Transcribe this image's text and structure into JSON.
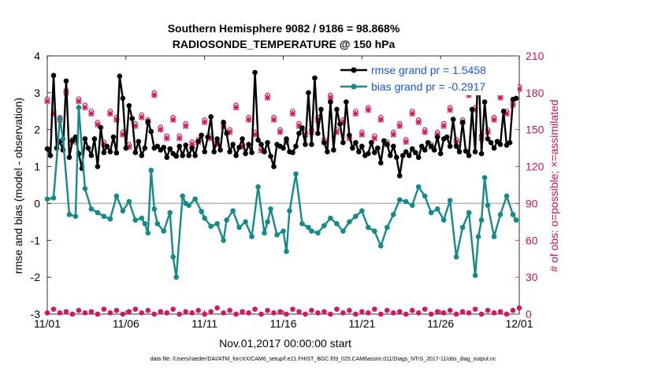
{
  "chart_data": {
    "type": "line",
    "title_line1": "Southern Hemisphere 9082 / 9186 = 98.868%",
    "title_line2": "RADIOSONDE_TEMPERATURE @ 150 hPa",
    "xlabel": "Nov.01,2017 00:00:00 start",
    "ylabel_left": "rmse and bias (model - observation)",
    "ylabel_right": "# of obs: o=possible; ×=assimilated",
    "footnote": "data file: /Users/raeder/DAI/ATM_forcXX/CAM6_setup/f.e21.FHIST_BGC.f09_025.CAM6assim.011/Diags_NTrS_2017-11/obs_diag_output.nc",
    "xlim": [
      0,
      30
    ],
    "ylim_left": [
      -3,
      4
    ],
    "ylim_right": [
      0,
      210
    ],
    "x_ticks": [
      0,
      5,
      10,
      15,
      20,
      25,
      30
    ],
    "x_tick_labels": [
      "11/01",
      "11/06",
      "11/11",
      "11/16",
      "11/21",
      "11/26",
      "12/01"
    ],
    "y_ticks_left": [
      -3,
      -2,
      -1,
      0,
      1,
      2,
      3,
      4
    ],
    "y_tick_labels_left": [
      "-3",
      "-2",
      "-1",
      "0",
      "1",
      "2",
      "3",
      "4"
    ],
    "y_ticks_right": [
      0,
      30,
      60,
      90,
      120,
      150,
      180,
      210
    ],
    "y_tick_labels_right": [
      "0",
      "30",
      "60",
      "90",
      "120",
      "150",
      "180",
      "210"
    ],
    "colors": {
      "rmse": "#000000",
      "bias": "#148a8a",
      "obs": "#d6175e",
      "legend_text": "#1a55e6",
      "zero_line": "#b5b5b5"
    },
    "series": [
      {
        "name": "rmse grand pr = 1.5458",
        "values": [
          1.48,
          1.3,
          3.47,
          1.5,
          1.68,
          1.45,
          3.32,
          1.25,
          1.7,
          1.8,
          1.35,
          0.95,
          1.75,
          1.5,
          1.3,
          1.75,
          1.0,
          2.06,
          1.38,
          1.55,
          1.4,
          1.8,
          1.37,
          3.45,
          2.85,
          1.5,
          2.65,
          2.3,
          1.38,
          1.68,
          1.3,
          1.5,
          2.22,
          1.95,
          1.5,
          1.55,
          1.45,
          1.52,
          1.25,
          1.48,
          1.35,
          1.28,
          1.55,
          1.3,
          1.58,
          1.3,
          1.5,
          1.3,
          1.68,
          1.85,
          1.4,
          1.8,
          2.35,
          1.4,
          1.75,
          1.45,
          2.2,
          1.9,
          1.4,
          1.6,
          1.3,
          1.52,
          1.75,
          1.35,
          1.6,
          1.38,
          3.55,
          1.72,
          1.6,
          1.4,
          1.65,
          1.28,
          1.0,
          1.6,
          1.55,
          1.5,
          1.75,
          1.4,
          1.38,
          1.55,
          1.9,
          2.05,
          1.6,
          3.0,
          1.6,
          3.4,
          1.9,
          2.55,
          1.65,
          1.4,
          2.75,
          1.45,
          2.55,
          2.15,
          1.65,
          2.75,
          1.85,
          1.5,
          1.65,
          1.4,
          1.55,
          1.3,
          1.35,
          1.65,
          1.38,
          1.5,
          1.1,
          1.7,
          1.6,
          1.3,
          1.55,
          1.25,
          0.75,
          1.3,
          1.4,
          1.3,
          1.48,
          1.38,
          1.25,
          1.55,
          1.45,
          1.65,
          1.55,
          1.45,
          1.8,
          1.35,
          1.75,
          1.8,
          1.55,
          2.28,
          1.55,
          1.4,
          2.2,
          1.42,
          1.3,
          2.55,
          1.4,
          3.85,
          1.35,
          2.75,
          1.75,
          1.65,
          1.5,
          1.68,
          1.6,
          2.5,
          1.58,
          1.65,
          2.82,
          2.85
        ],
        "x": [
          0.0,
          0.2,
          0.4,
          0.6,
          0.8,
          1.0,
          1.2,
          1.4,
          1.6,
          1.8,
          2.0,
          2.2,
          2.4,
          2.6,
          2.8,
          3.0,
          3.2,
          3.4,
          3.6,
          3.8,
          4.0,
          4.2,
          4.4,
          4.6,
          4.8,
          5.0,
          5.2,
          5.4,
          5.6,
          5.8,
          6.0,
          6.2,
          6.4,
          6.6,
          6.8,
          7.0,
          7.2,
          7.4,
          7.6,
          7.8,
          8.0,
          8.2,
          8.4,
          8.6,
          8.8,
          9.0,
          9.2,
          9.4,
          9.6,
          9.8,
          10.0,
          10.2,
          10.4,
          10.6,
          10.8,
          11.0,
          11.2,
          11.4,
          11.6,
          11.8,
          12.0,
          12.2,
          12.4,
          12.6,
          12.8,
          13.0,
          13.2,
          13.4,
          13.6,
          13.8,
          14.0,
          14.2,
          14.4,
          14.6,
          14.8,
          15.0,
          15.2,
          15.4,
          15.6,
          15.8,
          16.0,
          16.2,
          16.4,
          16.6,
          16.8,
          17.0,
          17.2,
          17.4,
          17.6,
          17.8,
          18.0,
          18.2,
          18.4,
          18.6,
          18.8,
          19.0,
          19.2,
          19.4,
          19.6,
          19.8,
          20.0,
          20.2,
          20.4,
          20.6,
          20.8,
          21.0,
          21.2,
          21.4,
          21.6,
          21.8,
          22.0,
          22.2,
          22.4,
          22.6,
          22.8,
          23.0,
          23.2,
          23.4,
          23.6,
          23.8,
          24.0,
          24.2,
          24.4,
          24.6,
          24.8,
          25.0,
          25.2,
          25.4,
          25.6,
          25.8,
          26.0,
          26.2,
          26.4,
          26.6,
          26.8,
          27.0,
          27.2,
          27.4,
          27.6,
          27.8,
          28.0,
          28.2,
          28.4,
          28.6,
          28.8,
          29.0,
          29.2,
          29.4,
          29.6,
          29.8
        ]
      },
      {
        "name": "bias grand pr = -0.2917",
        "x": [
          0.0,
          0.4,
          0.8,
          1.0,
          1.4,
          1.8,
          2.0,
          2.4,
          2.8,
          3.2,
          3.6,
          4.0,
          4.4,
          4.8,
          5.2,
          5.6,
          6.0,
          6.2,
          6.4,
          6.6,
          6.8,
          7.0,
          7.4,
          7.8,
          8.0,
          8.2,
          8.6,
          8.8,
          9.0,
          9.4,
          9.8,
          10.0,
          10.4,
          10.8,
          11.2,
          11.4,
          11.8,
          12.2,
          12.6,
          13.0,
          13.4,
          13.8,
          14.0,
          14.2,
          14.6,
          15.0,
          15.2,
          15.4,
          15.8,
          16.2,
          16.6,
          16.8,
          17.2,
          17.6,
          18.0,
          18.4,
          18.8,
          19.2,
          19.6,
          20.0,
          20.4,
          20.8,
          21.2,
          21.6,
          22.0,
          22.4,
          22.8,
          23.2,
          23.6,
          24.0,
          24.4,
          24.8,
          25.2,
          25.6,
          26.0,
          26.4,
          26.8,
          27.2,
          27.4,
          27.6,
          27.8,
          28.0,
          28.4,
          28.8,
          29.2,
          29.6,
          29.8
        ],
        "values": [
          0.12,
          0.15,
          2.3,
          1.75,
          -0.3,
          -0.35,
          2.6,
          0.4,
          -0.15,
          -0.25,
          -0.35,
          -0.42,
          0.2,
          -0.2,
          0.05,
          -0.45,
          -0.4,
          -0.55,
          -0.8,
          0.9,
          -0.15,
          -0.55,
          -0.75,
          -0.25,
          -1.45,
          -2.0,
          0.2,
          0.0,
          -0.05,
          0.12,
          -0.22,
          -0.4,
          -0.62,
          -0.55,
          -1.0,
          -0.45,
          -0.2,
          -0.65,
          -0.5,
          -0.9,
          0.45,
          -0.8,
          -0.5,
          -0.15,
          -0.85,
          -0.75,
          -1.3,
          -0.2,
          0.8,
          -0.55,
          -0.65,
          -0.75,
          -0.8,
          -0.6,
          -0.4,
          -0.55,
          -0.75,
          -0.5,
          -0.35,
          -0.2,
          -0.65,
          -0.75,
          -1.15,
          -0.65,
          -0.3,
          0.1,
          0.05,
          -0.05,
          0.45,
          0.2,
          -0.25,
          -0.15,
          -0.45,
          0.08,
          -1.45,
          -0.65,
          -0.25,
          -1.95,
          -0.9,
          -0.45,
          0.7,
          -0.05,
          -0.9,
          -0.3,
          0.2,
          -0.3,
          -0.45
        ]
      }
    ],
    "obs_possible_count": {
      "x": [
        0.0,
        0.4,
        0.8,
        1.2,
        1.6,
        2.0,
        2.4,
        2.8,
        3.2,
        3.6,
        4.0,
        4.4,
        4.8,
        5.2,
        5.6,
        6.0,
        6.4,
        6.8,
        7.2,
        7.6,
        8.0,
        8.4,
        8.8,
        9.2,
        9.6,
        10.0,
        10.4,
        10.8,
        11.2,
        11.6,
        12.0,
        12.4,
        12.8,
        13.2,
        13.6,
        14.0,
        14.4,
        14.8,
        15.2,
        15.6,
        16.0,
        16.4,
        16.8,
        17.2,
        17.6,
        18.0,
        18.4,
        18.8,
        19.2,
        19.6,
        20.0,
        20.4,
        20.8,
        21.2,
        21.6,
        22.0,
        22.4,
        22.8,
        23.2,
        23.6,
        24.0,
        24.4,
        24.8,
        25.2,
        25.6,
        26.0,
        26.4,
        26.8,
        27.2,
        27.6,
        28.0,
        28.4,
        28.8,
        29.2,
        29.6,
        30.0
      ],
      "values": [
        175,
        165,
        160,
        182,
        142,
        175,
        170,
        165,
        156,
        140,
        165,
        160,
        148,
        138,
        155,
        162,
        158,
        180,
        152,
        145,
        160,
        145,
        155,
        140,
        142,
        158,
        145,
        140,
        155,
        150,
        170,
        138,
        160,
        148,
        135,
        178,
        160,
        150,
        142,
        165,
        155,
        148,
        150,
        160,
        142,
        178,
        150,
        158,
        145,
        165,
        148,
        168,
        145,
        160,
        140,
        148,
        155,
        142,
        165,
        158,
        150,
        138,
        148,
        155,
        168,
        142,
        158,
        180,
        168,
        145,
        150,
        160,
        178,
        165,
        172,
        185
      ]
    },
    "obs_assimilated_count": {
      "x": [
        0.0,
        0.4,
        0.8,
        1.2,
        1.6,
        2.0,
        2.4,
        2.8,
        3.2,
        3.6,
        4.0,
        4.4,
        4.8,
        5.2,
        5.6,
        6.0,
        6.4,
        6.8,
        7.2,
        7.6,
        8.0,
        8.4,
        8.8,
        9.2,
        9.6,
        10.0,
        10.4,
        10.8,
        11.2,
        11.6,
        12.0,
        12.4,
        12.8,
        13.2,
        13.6,
        14.0,
        14.4,
        14.8,
        15.2,
        15.6,
        16.0,
        16.4,
        16.8,
        17.2,
        17.6,
        18.0,
        18.4,
        18.8,
        19.2,
        19.6,
        20.0,
        20.4,
        20.8,
        21.2,
        21.6,
        22.0,
        22.4,
        22.8,
        23.2,
        23.6,
        24.0,
        24.4,
        24.8,
        25.2,
        25.6,
        26.0,
        26.4,
        26.8,
        27.2,
        27.6,
        28.0,
        28.4,
        28.8,
        29.2,
        29.6,
        30.0
      ],
      "values": [
        173,
        163,
        158,
        180,
        140,
        173,
        168,
        163,
        154,
        138,
        163,
        158,
        146,
        136,
        153,
        160,
        156,
        178,
        150,
        143,
        158,
        143,
        153,
        138,
        140,
        156,
        143,
        138,
        153,
        148,
        168,
        136,
        158,
        146,
        133,
        176,
        158,
        148,
        140,
        163,
        153,
        146,
        148,
        158,
        140,
        176,
        148,
        156,
        143,
        163,
        146,
        166,
        143,
        158,
        138,
        146,
        153,
        140,
        163,
        156,
        148,
        136,
        146,
        153,
        166,
        140,
        156,
        178,
        166,
        143,
        148,
        158,
        176,
        163,
        170,
        183
      ]
    },
    "obs_bottom_count": {
      "x": [
        0.0,
        0.4,
        0.8,
        1.2,
        1.6,
        2.0,
        2.4,
        2.8,
        3.2,
        3.6,
        4.0,
        4.4,
        4.8,
        5.2,
        5.6,
        6.0,
        6.4,
        6.8,
        7.2,
        7.6,
        8.0,
        8.4,
        8.8,
        9.2,
        9.6,
        10.0,
        10.4,
        10.8,
        11.2,
        11.6,
        12.0,
        12.4,
        12.8,
        13.2,
        13.6,
        14.0,
        14.4,
        14.8,
        15.2,
        15.6,
        16.0,
        16.4,
        16.8,
        17.2,
        17.6,
        18.0,
        18.4,
        18.8,
        19.2,
        19.6,
        20.0,
        20.4,
        20.8,
        21.2,
        21.6,
        22.0,
        22.4,
        22.8,
        23.2,
        23.6,
        24.0,
        24.4,
        24.8,
        25.2,
        25.6,
        26.0,
        26.4,
        26.8,
        27.2,
        27.6,
        28.0,
        28.4,
        28.8,
        29.2,
        29.6,
        30.0
      ],
      "values": [
        1,
        4,
        1,
        2,
        0,
        3,
        1,
        2,
        0,
        4,
        1,
        3,
        0,
        2,
        4,
        1,
        3,
        0,
        2,
        1,
        4,
        0,
        2,
        1,
        3,
        0,
        2,
        5,
        1,
        3,
        0,
        2,
        1,
        4,
        0,
        3,
        1,
        2,
        0,
        4,
        2,
        0,
        3,
        1,
        2,
        0,
        4,
        1,
        3,
        0,
        2,
        1,
        4,
        0,
        3,
        1,
        2,
        0,
        3,
        1,
        4,
        0,
        2,
        1,
        3,
        0,
        2,
        1,
        4,
        0,
        3,
        1,
        2,
        0,
        3,
        5
      ]
    }
  }
}
